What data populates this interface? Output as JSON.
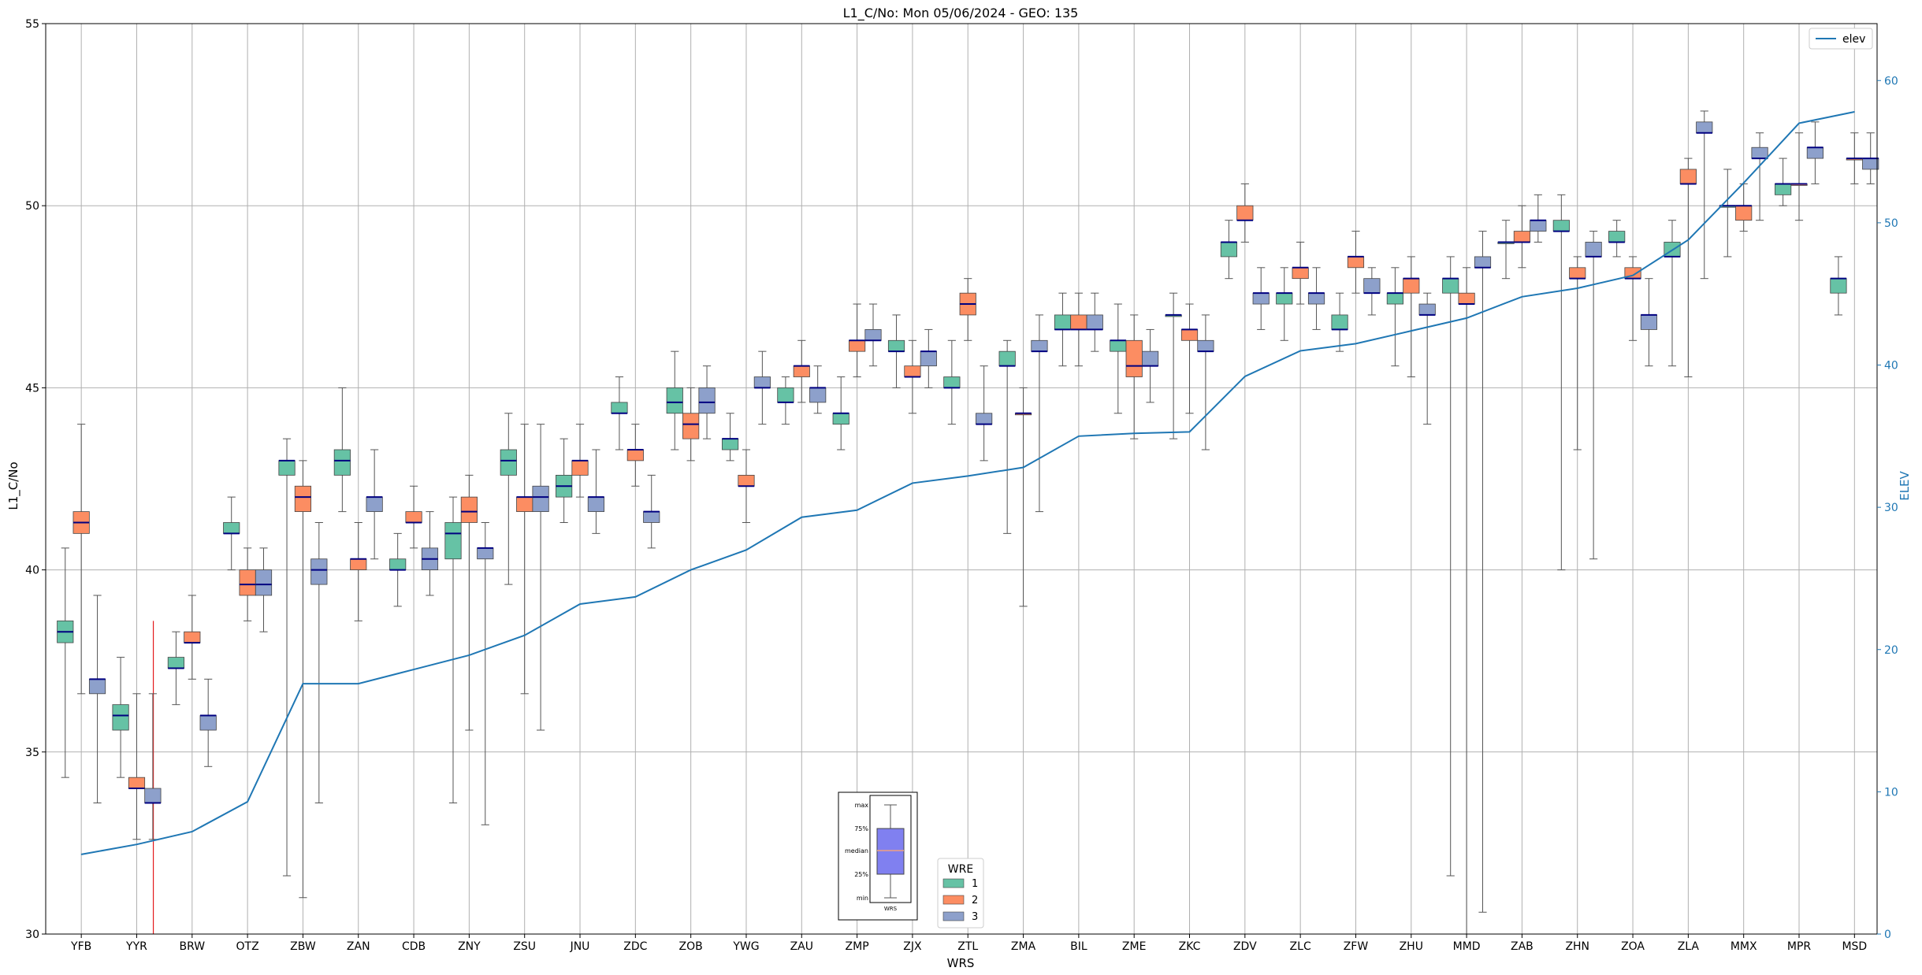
{
  "chart_data": {
    "type": "box",
    "title": "L1_C/No: Mon 05/06/2024 - GEO: 135",
    "xlabel": "WRS",
    "ylabel": "L1_C/No",
    "y2label": "ELEV",
    "ylim": [
      30,
      55
    ],
    "y2lim": [
      0,
      64
    ],
    "yticks": [
      30,
      35,
      40,
      45,
      50,
      55
    ],
    "y2ticks": [
      0,
      10,
      20,
      30,
      40,
      50,
      60
    ],
    "grid": true,
    "categories": [
      "YFB",
      "YYR",
      "BRW",
      "OTZ",
      "ZBW",
      "ZAN",
      "CDB",
      "ZNY",
      "ZSU",
      "JNU",
      "ZDC",
      "ZOB",
      "YWG",
      "ZAU",
      "ZMP",
      "ZJX",
      "ZTL",
      "ZMA",
      "BIL",
      "ZME",
      "ZKC",
      "ZDV",
      "ZLC",
      "ZFW",
      "ZHU",
      "MMD",
      "ZAB",
      "ZHN",
      "ZOA",
      "ZLA",
      "MMX",
      "MPR",
      "MSD"
    ],
    "legend_title": "WRE",
    "series": [
      {
        "name": "1",
        "color": "#66c2a5",
        "boxes": [
          {
            "x": "YFB",
            "min": 34.3,
            "q1": 38.0,
            "med": 38.3,
            "q3": 38.6,
            "max": 40.6
          },
          {
            "x": "YYR",
            "min": 34.3,
            "q1": 35.6,
            "med": 36.0,
            "q3": 36.3,
            "max": 37.6
          },
          {
            "x": "BRW",
            "min": 36.3,
            "q1": 37.3,
            "med": 37.3,
            "q3": 37.6,
            "max": 38.3
          },
          {
            "x": "OTZ",
            "min": 40.0,
            "q1": 41.0,
            "med": 41.0,
            "q3": 41.3,
            "max": 42.0
          },
          {
            "x": "ZBW",
            "min": 31.6,
            "q1": 42.6,
            "med": 43.0,
            "q3": 43.0,
            "max": 43.6
          },
          {
            "x": "ZAN",
            "min": 41.6,
            "q1": 42.6,
            "med": 43.0,
            "q3": 43.3,
            "max": 45.0
          },
          {
            "x": "CDB",
            "min": 39.0,
            "q1": 40.0,
            "med": 40.0,
            "q3": 40.3,
            "max": 41.0
          },
          {
            "x": "ZNY",
            "min": 33.6,
            "q1": 40.3,
            "med": 41.0,
            "q3": 41.3,
            "max": 42.0
          },
          {
            "x": "ZSU",
            "min": 39.6,
            "q1": 42.6,
            "med": 43.0,
            "q3": 43.3,
            "max": 44.3
          },
          {
            "x": "JNU",
            "min": 41.3,
            "q1": 42.0,
            "med": 42.3,
            "q3": 42.6,
            "max": 43.6
          },
          {
            "x": "ZDC",
            "min": 43.3,
            "q1": 44.3,
            "med": 44.3,
            "q3": 44.6,
            "max": 45.3
          },
          {
            "x": "ZOB",
            "min": 43.3,
            "q1": 44.3,
            "med": 44.6,
            "q3": 45.0,
            "max": 46.0
          },
          {
            "x": "YWG",
            "min": 43.0,
            "q1": 43.3,
            "med": 43.6,
            "q3": 43.6,
            "max": 44.3
          },
          {
            "x": "ZAU",
            "min": 44.0,
            "q1": 44.6,
            "med": 44.6,
            "q3": 45.0,
            "max": 45.3
          },
          {
            "x": "ZMP",
            "min": 43.3,
            "q1": 44.0,
            "med": 44.3,
            "q3": 44.3,
            "max": 45.3
          },
          {
            "x": "ZJX",
            "min": 45.0,
            "q1": 46.0,
            "med": 46.0,
            "q3": 46.3,
            "max": 47.0
          },
          {
            "x": "ZTL",
            "min": 44.0,
            "q1": 45.0,
            "med": 45.0,
            "q3": 45.3,
            "max": 46.3
          },
          {
            "x": "ZMA",
            "min": 41.0,
            "q1": 45.6,
            "med": 45.6,
            "q3": 46.0,
            "max": 46.3
          },
          {
            "x": "BIL",
            "min": 45.6,
            "q1": 46.6,
            "med": 46.6,
            "q3": 47.0,
            "max": 47.6
          },
          {
            "x": "ZME",
            "min": 44.3,
            "q1": 46.0,
            "med": 46.3,
            "q3": 46.3,
            "max": 47.3
          },
          {
            "x": "ZKC",
            "min": 43.6,
            "q1": 47.0,
            "med": 47.0,
            "q3": 47.0,
            "max": 47.6
          },
          {
            "x": "ZDV",
            "min": 48.0,
            "q1": 48.6,
            "med": 49.0,
            "q3": 49.0,
            "max": 49.6
          },
          {
            "x": "ZLC",
            "min": 46.3,
            "q1": 47.3,
            "med": 47.6,
            "q3": 47.6,
            "max": 48.3
          },
          {
            "x": "ZFW",
            "min": 46.0,
            "q1": 46.6,
            "med": 46.6,
            "q3": 47.0,
            "max": 47.6
          },
          {
            "x": "ZHU",
            "min": 45.6,
            "q1": 47.3,
            "med": 47.6,
            "q3": 47.6,
            "max": 48.3
          },
          {
            "x": "MMD",
            "min": 31.6,
            "q1": 47.6,
            "med": 48.0,
            "q3": 48.0,
            "max": 48.6
          },
          {
            "x": "ZAB",
            "min": 48.0,
            "q1": 49.0,
            "med": 49.0,
            "q3": 49.0,
            "max": 49.6
          },
          {
            "x": "ZHN",
            "min": 40.0,
            "q1": 49.3,
            "med": 49.3,
            "q3": 49.6,
            "max": 50.3
          },
          {
            "x": "ZOA",
            "min": 48.6,
            "q1": 49.0,
            "med": 49.0,
            "q3": 49.3,
            "max": 49.6
          },
          {
            "x": "ZLA",
            "min": 45.6,
            "q1": 48.6,
            "med": 48.6,
            "q3": 49.0,
            "max": 49.6
          },
          {
            "x": "MMX",
            "min": 48.6,
            "q1": 50.0,
            "med": 50.0,
            "q3": 50.0,
            "max": 51.0
          },
          {
            "x": "MPR",
            "min": 50.0,
            "q1": 50.3,
            "med": 50.6,
            "q3": 50.6,
            "max": 51.3
          },
          {
            "x": "MSD",
            "min": 47.0,
            "q1": 47.6,
            "med": 48.0,
            "q3": 48.0,
            "max": 48.6
          }
        ]
      },
      {
        "name": "2",
        "color": "#fc8d62",
        "boxes": [
          {
            "x": "YFB",
            "min": 36.6,
            "q1": 41.0,
            "med": 41.3,
            "q3": 41.6,
            "max": 44.0
          },
          {
            "x": "YYR",
            "min": 32.6,
            "q1": 34.0,
            "med": 34.0,
            "q3": 34.3,
            "max": 36.6
          },
          {
            "x": "BRW",
            "min": 37.0,
            "q1": 38.0,
            "med": 38.0,
            "q3": 38.3,
            "max": 39.3
          },
          {
            "x": "OTZ",
            "min": 38.6,
            "q1": 39.3,
            "med": 39.6,
            "q3": 40.0,
            "max": 40.6
          },
          {
            "x": "ZBW",
            "min": 31.0,
            "q1": 41.6,
            "med": 42.0,
            "q3": 42.3,
            "max": 43.0
          },
          {
            "x": "ZAN",
            "min": 38.6,
            "q1": 40.0,
            "med": 40.3,
            "q3": 40.3,
            "max": 41.3
          },
          {
            "x": "CDB",
            "min": 40.6,
            "q1": 41.3,
            "med": 41.3,
            "q3": 41.6,
            "max": 42.3
          },
          {
            "x": "ZNY",
            "min": 35.6,
            "q1": 41.3,
            "med": 41.6,
            "q3": 42.0,
            "max": 42.6
          },
          {
            "x": "ZSU",
            "min": 36.6,
            "q1": 41.6,
            "med": 42.0,
            "q3": 42.0,
            "max": 44.0
          },
          {
            "x": "JNU",
            "min": 42.0,
            "q1": 42.6,
            "med": 43.0,
            "q3": 43.0,
            "max": 44.0
          },
          {
            "x": "ZDC",
            "min": 42.3,
            "q1": 43.0,
            "med": 43.3,
            "q3": 43.3,
            "max": 44.0
          },
          {
            "x": "ZOB",
            "min": 43.0,
            "q1": 43.6,
            "med": 44.0,
            "q3": 44.3,
            "max": 45.0
          },
          {
            "x": "YWG",
            "min": 41.3,
            "q1": 42.3,
            "med": 42.3,
            "q3": 42.6,
            "max": 43.3
          },
          {
            "x": "ZAU",
            "min": 44.6,
            "q1": 45.3,
            "med": 45.6,
            "q3": 45.6,
            "max": 46.3
          },
          {
            "x": "ZMP",
            "min": 45.3,
            "q1": 46.0,
            "med": 46.3,
            "q3": 46.3,
            "max": 47.3
          },
          {
            "x": "ZJX",
            "min": 44.3,
            "q1": 45.3,
            "med": 45.3,
            "q3": 45.6,
            "max": 46.3
          },
          {
            "x": "ZTL",
            "min": 46.3,
            "q1": 47.0,
            "med": 47.3,
            "q3": 47.6,
            "max": 48.0
          },
          {
            "x": "ZMA",
            "min": 39.0,
            "q1": 44.3,
            "med": 44.3,
            "q3": 44.3,
            "max": 45.0
          },
          {
            "x": "BIL",
            "min": 45.6,
            "q1": 46.6,
            "med": 46.6,
            "q3": 47.0,
            "max": 47.6
          },
          {
            "x": "ZME",
            "min": 43.6,
            "q1": 45.3,
            "med": 45.6,
            "q3": 46.3,
            "max": 47.0
          },
          {
            "x": "ZKC",
            "min": 44.3,
            "q1": 46.3,
            "med": 46.6,
            "q3": 46.6,
            "max": 47.3
          },
          {
            "x": "ZDV",
            "min": 49.0,
            "q1": 49.6,
            "med": 49.6,
            "q3": 50.0,
            "max": 50.6
          },
          {
            "x": "ZLC",
            "min": 47.3,
            "q1": 48.0,
            "med": 48.3,
            "q3": 48.3,
            "max": 49.0
          },
          {
            "x": "ZFW",
            "min": 47.6,
            "q1": 48.3,
            "med": 48.6,
            "q3": 48.6,
            "max": 49.3
          },
          {
            "x": "ZHU",
            "min": 45.3,
            "q1": 47.6,
            "med": 48.0,
            "q3": 48.0,
            "max": 48.6
          },
          {
            "x": "MMD",
            "min": 30.0,
            "q1": 47.3,
            "med": 47.3,
            "q3": 47.6,
            "max": 48.3
          },
          {
            "x": "ZAB",
            "min": 48.3,
            "q1": 49.0,
            "med": 49.0,
            "q3": 49.3,
            "max": 50.0
          },
          {
            "x": "ZHN",
            "min": 43.3,
            "q1": 48.0,
            "med": 48.0,
            "q3": 48.3,
            "max": 48.6
          },
          {
            "x": "ZOA",
            "min": 46.3,
            "q1": 48.0,
            "med": 48.0,
            "q3": 48.3,
            "max": 48.6
          },
          {
            "x": "ZLA",
            "min": 45.3,
            "q1": 50.6,
            "med": 50.6,
            "q3": 51.0,
            "max": 51.3
          },
          {
            "x": "MMX",
            "min": 49.3,
            "q1": 49.6,
            "med": 50.0,
            "q3": 50.0,
            "max": 50.6
          },
          {
            "x": "MPR",
            "min": 49.6,
            "q1": 50.6,
            "med": 50.6,
            "q3": 50.6,
            "max": 52.0
          },
          {
            "x": "MSD",
            "min": 50.6,
            "q1": 51.3,
            "med": 51.3,
            "q3": 51.3,
            "max": 52.0
          }
        ]
      },
      {
        "name": "3",
        "color": "#8da0cb",
        "boxes": [
          {
            "x": "YFB",
            "min": 33.6,
            "q1": 36.6,
            "med": 37.0,
            "q3": 37.0,
            "max": 39.3
          },
          {
            "x": "YYR",
            "min": 32.6,
            "q1": 33.6,
            "med": 33.6,
            "q3": 34.0,
            "max": 36.6
          },
          {
            "x": "BRW",
            "min": 34.6,
            "q1": 35.6,
            "med": 36.0,
            "q3": 36.0,
            "max": 37.0
          },
          {
            "x": "OTZ",
            "min": 38.3,
            "q1": 39.3,
            "med": 39.6,
            "q3": 40.0,
            "max": 40.6
          },
          {
            "x": "ZBW",
            "min": 33.6,
            "q1": 39.6,
            "med": 40.0,
            "q3": 40.3,
            "max": 41.3
          },
          {
            "x": "ZAN",
            "min": 40.3,
            "q1": 41.6,
            "med": 42.0,
            "q3": 42.0,
            "max": 43.3
          },
          {
            "x": "CDB",
            "min": 39.3,
            "q1": 40.0,
            "med": 40.3,
            "q3": 40.6,
            "max": 41.6
          },
          {
            "x": "ZNY",
            "min": 33.0,
            "q1": 40.3,
            "med": 40.6,
            "q3": 40.6,
            "max": 41.3
          },
          {
            "x": "ZSU",
            "min": 35.6,
            "q1": 41.6,
            "med": 42.0,
            "q3": 42.3,
            "max": 44.0
          },
          {
            "x": "JNU",
            "min": 41.0,
            "q1": 41.6,
            "med": 42.0,
            "q3": 42.0,
            "max": 43.3
          },
          {
            "x": "ZDC",
            "min": 40.6,
            "q1": 41.3,
            "med": 41.6,
            "q3": 41.6,
            "max": 42.6
          },
          {
            "x": "ZOB",
            "min": 43.6,
            "q1": 44.3,
            "med": 44.6,
            "q3": 45.0,
            "max": 45.6
          },
          {
            "x": "YWG",
            "min": 44.0,
            "q1": 45.0,
            "med": 45.0,
            "q3": 45.3,
            "max": 46.0
          },
          {
            "x": "ZAU",
            "min": 44.3,
            "q1": 44.6,
            "med": 45.0,
            "q3": 45.0,
            "max": 45.6
          },
          {
            "x": "ZMP",
            "min": 45.6,
            "q1": 46.3,
            "med": 46.3,
            "q3": 46.6,
            "max": 47.3
          },
          {
            "x": "ZJX",
            "min": 45.0,
            "q1": 45.6,
            "med": 46.0,
            "q3": 46.0,
            "max": 46.6
          },
          {
            "x": "ZTL",
            "min": 43.0,
            "q1": 44.0,
            "med": 44.0,
            "q3": 44.3,
            "max": 45.6
          },
          {
            "x": "ZMA",
            "min": 41.6,
            "q1": 46.0,
            "med": 46.0,
            "q3": 46.3,
            "max": 47.0
          },
          {
            "x": "BIL",
            "min": 46.0,
            "q1": 46.6,
            "med": 46.6,
            "q3": 47.0,
            "max": 47.6
          },
          {
            "x": "ZME",
            "min": 44.6,
            "q1": 45.6,
            "med": 45.6,
            "q3": 46.0,
            "max": 46.6
          },
          {
            "x": "ZKC",
            "min": 43.3,
            "q1": 46.0,
            "med": 46.0,
            "q3": 46.3,
            "max": 47.0
          },
          {
            "x": "ZDV",
            "min": 46.6,
            "q1": 47.3,
            "med": 47.6,
            "q3": 47.6,
            "max": 48.3
          },
          {
            "x": "ZLC",
            "min": 46.6,
            "q1": 47.3,
            "med": 47.6,
            "q3": 47.6,
            "max": 48.3
          },
          {
            "x": "ZFW",
            "min": 47.0,
            "q1": 47.6,
            "med": 47.6,
            "q3": 48.0,
            "max": 48.3
          },
          {
            "x": "ZHU",
            "min": 44.0,
            "q1": 47.0,
            "med": 47.0,
            "q3": 47.3,
            "max": 47.6
          },
          {
            "x": "MMD",
            "min": 30.6,
            "q1": 48.3,
            "med": 48.3,
            "q3": 48.6,
            "max": 49.3
          },
          {
            "x": "ZAB",
            "min": 49.0,
            "q1": 49.3,
            "med": 49.6,
            "q3": 49.6,
            "max": 50.3
          },
          {
            "x": "ZHN",
            "min": 40.3,
            "q1": 48.6,
            "med": 48.6,
            "q3": 49.0,
            "max": 49.3
          },
          {
            "x": "ZOA",
            "min": 45.6,
            "q1": 46.6,
            "med": 47.0,
            "q3": 47.0,
            "max": 48.0
          },
          {
            "x": "ZLA",
            "min": 48.0,
            "q1": 52.0,
            "med": 52.0,
            "q3": 52.3,
            "max": 52.6
          },
          {
            "x": "MMX",
            "min": 49.6,
            "q1": 51.3,
            "med": 51.3,
            "q3": 51.6,
            "max": 52.0
          },
          {
            "x": "MPR",
            "min": 50.6,
            "q1": 51.3,
            "med": 51.6,
            "q3": 51.6,
            "max": 52.3
          },
          {
            "x": "MSD",
            "min": 50.6,
            "q1": 51.0,
            "med": 51.3,
            "q3": 51.3,
            "max": 52.0
          }
        ]
      }
    ],
    "elev_line": {
      "name": "elev",
      "color": "#1f77b4",
      "values": [
        5.6,
        6.3,
        7.2,
        9.3,
        17.6,
        17.6,
        18.6,
        19.6,
        21.0,
        23.2,
        23.7,
        25.6,
        27.0,
        29.3,
        29.8,
        31.7,
        32.2,
        32.8,
        35.0,
        35.2,
        35.3,
        39.2,
        41.0,
        41.5,
        42.4,
        43.3,
        44.8,
        45.4,
        46.3,
        48.8,
        52.8,
        57.0,
        57.8
      ]
    },
    "red_marker": {
      "color": "#e41a1c",
      "x_between": [
        "YYR",
        "BRW"
      ],
      "from": 30,
      "to": 38.6
    },
    "legend_placement": "top-right",
    "wre_legend_placement": "bottom-center",
    "inset_legend": {
      "labels": [
        "max",
        "75%",
        "median",
        "25%",
        "min"
      ],
      "xlabel": "WRS"
    }
  }
}
